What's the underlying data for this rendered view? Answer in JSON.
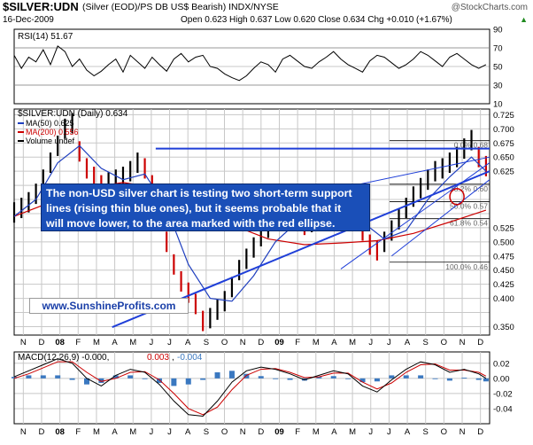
{
  "header": {
    "symbol": "$SILVER:UDN",
    "description": "(Silver (EOD)/PS DB US$ Bearish) INDX/NYSE",
    "watermark": "@StockCharts.com",
    "date": "16-Dec-2009",
    "quote": "Open 0.623  High 0.637  Low 0.620  Close 0.634  Chg +0.010 (+1.67%)",
    "quote_marker": "▲"
  },
  "annotations": {
    "main_note": [
      "The non-USD silver chart is testing two short-term support",
      "lines (rising thin blue ones), but it seems probable that it",
      "will move lower, to the area marked with the red ellipse."
    ],
    "website": "www.SunshineProfits.com"
  },
  "colors": {
    "price_up": "#000000",
    "price_down": "#cc0000",
    "ma50": "#1f3fbf",
    "ma200": "#cc0000",
    "trendline": "#1f3fd8",
    "macd_line": "#000000",
    "signal_line": "#cc0000",
    "histogram": "#3a78c0",
    "panel_border": "#000000",
    "grid": "#c8c8c8",
    "annotation_bg": "#1a4fb8"
  },
  "chart_data": [
    {
      "type": "line",
      "title": "RSI(14) 51.67",
      "ylim": [
        10,
        90
      ],
      "yticks": [
        10,
        30,
        50,
        70,
        90
      ],
      "ytick_labels": [
        "10",
        "30",
        "50",
        "70",
        "90"
      ],
      "ref_lines": [
        30,
        70
      ],
      "series": [
        {
          "name": "RSI(14)",
          "x": [
            0,
            2,
            4,
            6,
            8,
            10,
            12,
            14,
            16,
            18,
            20,
            22,
            24,
            26,
            28,
            30,
            32,
            34,
            36,
            38,
            40,
            42,
            44,
            46,
            48,
            50,
            52,
            54,
            56,
            58,
            60,
            62,
            64,
            66,
            68,
            70,
            72,
            74,
            76,
            78,
            80,
            82,
            84,
            86,
            88,
            90,
            92,
            94,
            96,
            98,
            100,
            102,
            104,
            106,
            108,
            110,
            112,
            114,
            116,
            118,
            120,
            122,
            124,
            126,
            128,
            130
          ],
          "values": [
            62,
            48,
            60,
            55,
            68,
            52,
            72,
            66,
            50,
            58,
            46,
            40,
            45,
            52,
            58,
            44,
            62,
            55,
            48,
            60,
            52,
            45,
            58,
            64,
            55,
            60,
            62,
            50,
            48,
            42,
            38,
            35,
            40,
            48,
            55,
            52,
            44,
            58,
            62,
            56,
            50,
            48,
            55,
            60,
            66,
            58,
            52,
            48,
            44,
            56,
            62,
            60,
            54,
            48,
            52,
            58,
            66,
            62,
            56,
            50,
            60,
            64,
            58,
            52,
            48,
            52
          ]
        }
      ]
    },
    {
      "type": "line",
      "title": "$SILVER:UDN (Daily) 0.634",
      "ylim": [
        0.335,
        0.735
      ],
      "yticks": [
        0.35,
        0.375,
        0.4,
        0.425,
        0.45,
        0.475,
        0.5,
        0.525,
        0.55,
        0.575,
        0.6,
        0.625,
        0.65,
        0.675,
        0.7,
        0.725
      ],
      "ytick_labels": [
        "0.350",
        "",
        "0.400",
        "0.425",
        "0.450",
        "0.475",
        "0.500",
        "0.525",
        "",
        "",
        "",
        "0.625",
        "0.650",
        "0.675",
        "0.700",
        "0.725"
      ],
      "legend": [
        {
          "label": "$SILVER:UDN (Daily) 0.634",
          "color": "#000000"
        },
        {
          "label": "MA(50) 0.625",
          "color": "#1f3fbf"
        },
        {
          "label": "MA(200) 0.556",
          "color": "#cc0000"
        },
        {
          "label": "Volume undef",
          "color": "#000000"
        }
      ],
      "x_months": [
        "N",
        "D",
        "08",
        "F",
        "M",
        "A",
        "M",
        "J",
        "J",
        "A",
        "S",
        "O",
        "N",
        "D",
        "09",
        "F",
        "M",
        "A",
        "M",
        "J",
        "J",
        "A",
        "S",
        "O",
        "N",
        "D"
      ],
      "fib_labels": [
        "0.0% 0.68",
        "38.2% 0.60",
        "50.0% 0.57",
        "61.8% 0.54",
        "100.0% 0.46"
      ],
      "fib_levels": [
        0.679,
        0.602,
        0.571,
        0.541,
        0.464
      ],
      "series": [
        {
          "name": "$SILVER:UDN (Daily)",
          "x": [
            0,
            2,
            4,
            6,
            8,
            10,
            12,
            14,
            16,
            18,
            20,
            22,
            24,
            26,
            28,
            30,
            32,
            34,
            36,
            38,
            40,
            42,
            44,
            46,
            48,
            50,
            52,
            54,
            56,
            58,
            60,
            62,
            64,
            66,
            68,
            70,
            72,
            74,
            76,
            78,
            80,
            82,
            84,
            86,
            88,
            90,
            92,
            94,
            96,
            98,
            100,
            102,
            104,
            106,
            108,
            110,
            112,
            114,
            116,
            118,
            120,
            122,
            124,
            126,
            128,
            130
          ],
          "values": [
            0.552,
            0.56,
            0.57,
            0.585,
            0.61,
            0.64,
            0.67,
            0.7,
            0.71,
            0.66,
            0.63,
            0.615,
            0.6,
            0.605,
            0.61,
            0.615,
            0.625,
            0.64,
            0.63,
            0.6,
            0.56,
            0.5,
            0.46,
            0.43,
            0.41,
            0.39,
            0.36,
            0.365,
            0.38,
            0.395,
            0.42,
            0.45,
            0.47,
            0.49,
            0.51,
            0.525,
            0.54,
            0.56,
            0.555,
            0.545,
            0.53,
            0.535,
            0.545,
            0.55,
            0.56,
            0.575,
            0.565,
            0.54,
            0.52,
            0.495,
            0.485,
            0.5,
            0.52,
            0.54,
            0.56,
            0.58,
            0.595,
            0.61,
            0.625,
            0.63,
            0.64,
            0.65,
            0.665,
            0.68,
            0.65,
            0.634
          ]
        },
        {
          "name": "MA(50)",
          "x": [
            0,
            6,
            12,
            18,
            24,
            30,
            36,
            42,
            48,
            54,
            60,
            66,
            72,
            78,
            84,
            90,
            96,
            102,
            108,
            114,
            120,
            126,
            130
          ],
          "values": [
            0.545,
            0.575,
            0.64,
            0.67,
            0.63,
            0.61,
            0.62,
            0.56,
            0.46,
            0.4,
            0.395,
            0.44,
            0.5,
            0.535,
            0.545,
            0.555,
            0.535,
            0.505,
            0.52,
            0.575,
            0.615,
            0.65,
            0.625
          ]
        },
        {
          "name": "MA(200)",
          "x": [
            0,
            10,
            20,
            30,
            40,
            50,
            60,
            70,
            80,
            90,
            100,
            110,
            120,
            130
          ],
          "values": [
            0.545,
            0.57,
            0.595,
            0.605,
            0.595,
            0.56,
            0.53,
            0.505,
            0.495,
            0.498,
            0.502,
            0.515,
            0.535,
            0.556
          ]
        }
      ]
    },
    {
      "type": "line",
      "title": "MACD(12,26,9) -0.000, 0.003, -0.004",
      "ylim": [
        -0.06,
        0.035
      ],
      "yticks": [
        -0.04,
        -0.02,
        0.0,
        0.02
      ],
      "ytick_labels": [
        "-0.04",
        "-0.02",
        "0.00",
        "0.02"
      ],
      "legend": [
        {
          "label": "MACD(12,26,9)",
          "value": "-0.000",
          "color": "#000000"
        },
        {
          "label": "",
          "value": "0.003",
          "color": "#cc0000"
        },
        {
          "label": "",
          "value": "-0.004",
          "color": "#3a78c0"
        }
      ],
      "x_months": [
        "N",
        "D",
        "08",
        "F",
        "M",
        "A",
        "M",
        "J",
        "J",
        "A",
        "S",
        "O",
        "N",
        "D",
        "09",
        "F",
        "M",
        "A",
        "M",
        "J",
        "J",
        "A",
        "S",
        "O",
        "N",
        "D"
      ],
      "series": [
        {
          "name": "MACD",
          "x": [
            0,
            4,
            8,
            12,
            16,
            20,
            24,
            28,
            32,
            36,
            40,
            44,
            48,
            52,
            56,
            60,
            64,
            68,
            72,
            76,
            80,
            84,
            88,
            92,
            96,
            100,
            104,
            108,
            112,
            116,
            120,
            124,
            128,
            130
          ],
          "values": [
            0.002,
            0.01,
            0.018,
            0.026,
            0.02,
            0.0,
            -0.01,
            0.004,
            0.012,
            0.008,
            -0.008,
            -0.03,
            -0.048,
            -0.05,
            -0.03,
            -0.005,
            0.01,
            0.015,
            0.012,
            0.006,
            -0.002,
            0.004,
            0.01,
            0.006,
            -0.01,
            -0.018,
            -0.002,
            0.012,
            0.022,
            0.018,
            0.008,
            0.012,
            0.006,
            0.0
          ]
        },
        {
          "name": "Signal",
          "x": [
            0,
            4,
            8,
            12,
            16,
            20,
            24,
            28,
            32,
            36,
            40,
            44,
            48,
            52,
            56,
            60,
            64,
            68,
            72,
            76,
            80,
            84,
            88,
            92,
            96,
            100,
            104,
            108,
            112,
            116,
            120,
            124,
            128,
            130
          ],
          "values": [
            0.0,
            0.006,
            0.014,
            0.022,
            0.022,
            0.008,
            -0.004,
            0.0,
            0.008,
            0.009,
            -0.002,
            -0.02,
            -0.04,
            -0.048,
            -0.038,
            -0.015,
            0.004,
            0.012,
            0.013,
            0.008,
            0.001,
            0.002,
            0.007,
            0.007,
            -0.005,
            -0.014,
            -0.006,
            0.008,
            0.018,
            0.019,
            0.011,
            0.011,
            0.008,
            0.003
          ]
        },
        {
          "name": "Histogram",
          "x": [
            0,
            4,
            8,
            12,
            16,
            20,
            24,
            28,
            32,
            36,
            40,
            44,
            48,
            52,
            56,
            60,
            64,
            68,
            72,
            76,
            80,
            84,
            88,
            92,
            96,
            100,
            104,
            108,
            112,
            116,
            120,
            124,
            128,
            130
          ],
          "values": [
            0.002,
            0.004,
            0.004,
            0.004,
            -0.002,
            -0.008,
            -0.006,
            0.004,
            0.004,
            -0.001,
            -0.006,
            -0.01,
            -0.008,
            -0.002,
            0.008,
            0.01,
            0.006,
            0.003,
            -0.001,
            -0.002,
            -0.003,
            0.002,
            0.003,
            -0.001,
            -0.005,
            -0.004,
            0.004,
            0.004,
            0.004,
            -0.001,
            -0.003,
            0.001,
            -0.002,
            -0.004
          ]
        }
      ]
    }
  ]
}
